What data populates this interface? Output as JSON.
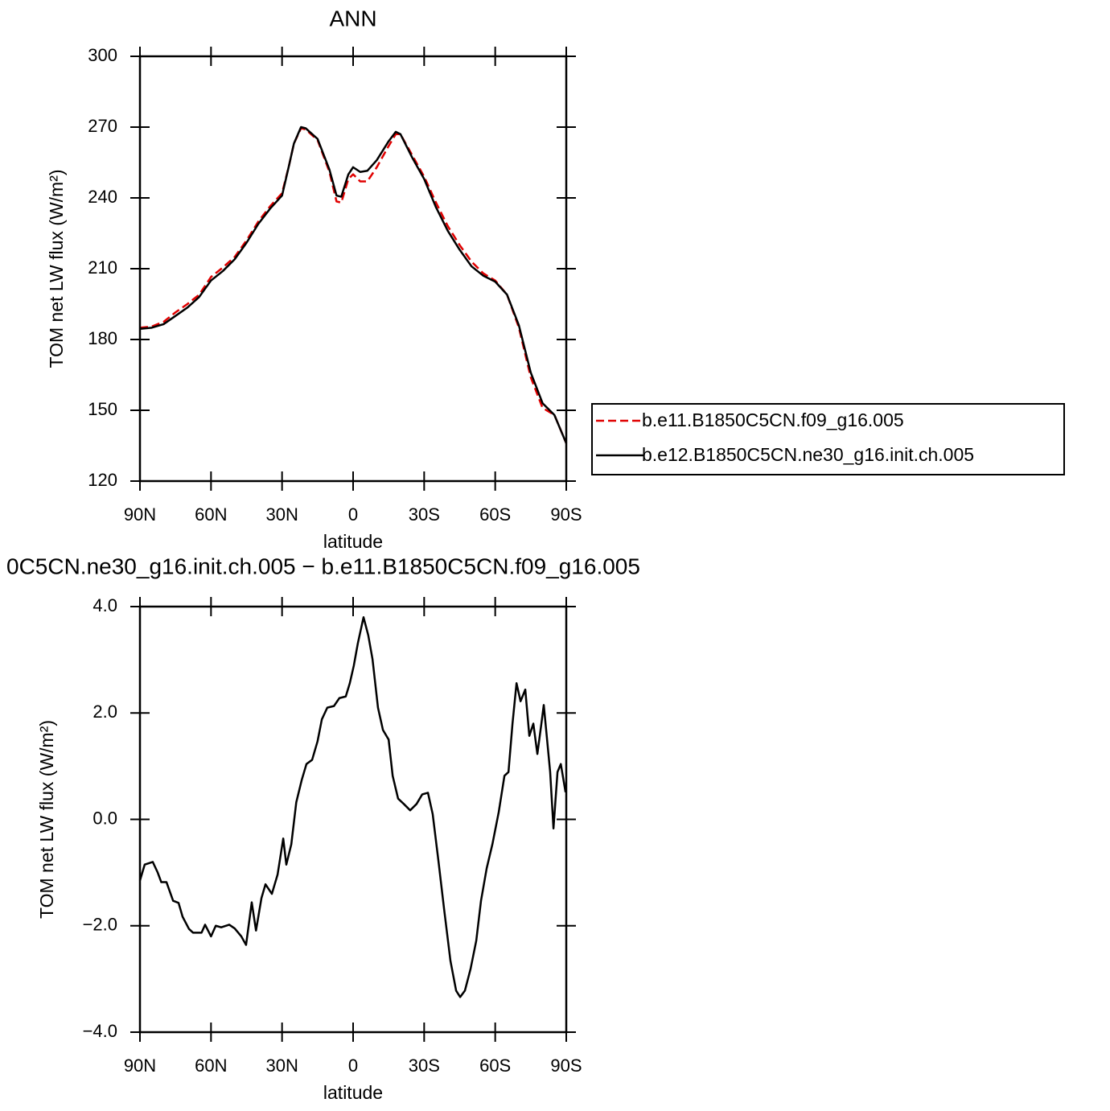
{
  "chart_data": [
    {
      "type": "line",
      "title": "ANN",
      "xlabel": "latitude",
      "ylabel": "TOM net LW flux (W/m²)",
      "x": [
        90,
        85,
        80,
        75,
        70,
        65,
        60,
        55,
        50,
        45,
        40,
        35,
        30,
        27,
        25,
        22,
        20,
        15,
        10,
        7,
        5,
        2,
        0,
        -3,
        -6,
        -10,
        -15,
        -18,
        -20,
        -25,
        -30,
        -35,
        -40,
        -45,
        -50,
        -55,
        -60,
        -65,
        -70,
        -75,
        -80,
        -85,
        -90
      ],
      "series": [
        {
          "name": "b.e11.B1850C5CN.f09_g16.005",
          "color": "#e00000",
          "dash": true,
          "values": [
            185,
            185.5,
            187.5,
            191.5,
            195,
            199,
            206.5,
            210.5,
            215,
            222,
            230,
            236.5,
            242,
            254,
            263,
            269.5,
            269,
            264.5,
            251,
            238.5,
            238,
            248,
            250,
            247,
            247,
            253,
            262,
            267,
            267,
            258,
            249,
            238,
            228,
            220,
            213,
            208,
            205,
            199,
            185,
            164,
            151,
            148,
            136
          ]
        },
        {
          "name": "b.e12.B1850C5CN.ne30_g16.init.ch.005",
          "color": "#000000",
          "dash": false,
          "values": [
            184.5,
            185,
            186.5,
            190,
            193.5,
            198,
            205,
            209,
            214,
            221,
            229,
            235.5,
            241,
            254,
            263,
            270,
            269.5,
            265,
            252,
            241,
            240.5,
            250,
            253,
            251,
            251.5,
            256,
            264,
            268,
            267,
            257,
            248,
            236,
            226,
            218,
            211,
            207,
            204.5,
            199,
            186,
            166,
            153,
            148,
            136
          ]
        }
      ],
      "xlim": [
        90,
        -90
      ],
      "xticks": [
        {
          "value": 90,
          "label": "90N"
        },
        {
          "value": 60,
          "label": "60N"
        },
        {
          "value": 30,
          "label": "30N"
        },
        0,
        {
          "value": -30,
          "label": "30S"
        },
        {
          "value": -60,
          "label": "60S"
        },
        {
          "value": -90,
          "label": "90S"
        }
      ],
      "ylim": [
        120,
        300
      ],
      "yticks": [
        120,
        150,
        180,
        210,
        240,
        270,
        300
      ],
      "legend": "right"
    },
    {
      "type": "line",
      "title": "0C5CN.ne30_g16.init.ch.005 − b.e11.B1850C5CN.f09_g16.005",
      "xlabel": "latitude",
      "ylabel": "TOM net LW flux (W/m²)",
      "x": [
        90,
        88,
        84.6,
        82.5,
        81,
        78.8,
        76,
        73.7,
        72,
        69.3,
        67.6,
        64,
        62.5,
        60,
        58,
        55.7,
        52.3,
        50,
        47.2,
        45.2,
        42.8,
        41,
        38.7,
        37,
        34.3,
        31.9,
        29.5,
        28.2,
        26.1,
        24,
        21.7,
        19.7,
        17.3,
        15,
        13.2,
        10.9,
        8.1,
        5.8,
        3.1,
        1.4,
        -0.3,
        -2,
        -4.4,
        -6.4,
        -8.2,
        -10.5,
        -12.6,
        -15,
        -16.7,
        -19,
        -21.4,
        -24.1,
        -26.8,
        -29.2,
        -31.6,
        -33.6,
        -36,
        -38.4,
        -41.1,
        -43.5,
        -45.2,
        -47.2,
        -49.6,
        -52,
        -54,
        -56.4,
        -58.8,
        -61.5,
        -63.9,
        -65.6,
        -67.3,
        -69,
        -70.7,
        -72.7,
        -74.4,
        -76.1,
        -77.8,
        -79.5,
        -80.5,
        -81.9,
        -83.2,
        -84.6,
        -86.3,
        -87.7,
        -89.7
      ],
      "values": [
        -1.15,
        -0.85,
        -0.8,
        -1.0,
        -1.18,
        -1.18,
        -1.53,
        -1.57,
        -1.83,
        -2.06,
        -2.13,
        -2.13,
        -1.98,
        -2.2,
        -2.0,
        -2.03,
        -1.98,
        -2.05,
        -2.2,
        -2.36,
        -1.56,
        -2.09,
        -1.48,
        -1.22,
        -1.4,
        -1.04,
        -0.36,
        -0.85,
        -0.47,
        0.32,
        0.74,
        1.04,
        1.12,
        1.47,
        1.88,
        2.1,
        2.13,
        2.28,
        2.31,
        2.56,
        2.89,
        3.31,
        3.8,
        3.46,
        3.01,
        2.1,
        1.68,
        1.5,
        0.82,
        0.39,
        0.29,
        0.17,
        0.29,
        0.47,
        0.5,
        0.1,
        -0.77,
        -1.68,
        -2.66,
        -3.22,
        -3.34,
        -3.22,
        -2.81,
        -2.28,
        -1.53,
        -0.92,
        -0.47,
        0.14,
        0.82,
        0.89,
        1.8,
        2.56,
        2.22,
        2.44,
        1.57,
        1.8,
        1.23,
        1.8,
        2.15,
        1.5,
        0.89,
        -0.17,
        0.89,
        1.04,
        0.51
      ],
      "color": "#000000",
      "xlim": [
        90,
        -90
      ],
      "xticks": [
        {
          "value": 90,
          "label": "90N"
        },
        {
          "value": 60,
          "label": "60N"
        },
        {
          "value": 30,
          "label": "30N"
        },
        0,
        {
          "value": -30,
          "label": "30S"
        },
        {
          "value": -60,
          "label": "60S"
        },
        {
          "value": -90,
          "label": "90S"
        }
      ],
      "ylim": [
        -4,
        4
      ],
      "yticks": [
        {
          "value": -4,
          "label": "−4.0"
        },
        {
          "value": -2,
          "label": "−2.0"
        },
        {
          "value": 0,
          "label": "0.0"
        },
        {
          "value": 2,
          "label": "2.0"
        },
        {
          "value": 4,
          "label": "4.0"
        }
      ]
    }
  ]
}
